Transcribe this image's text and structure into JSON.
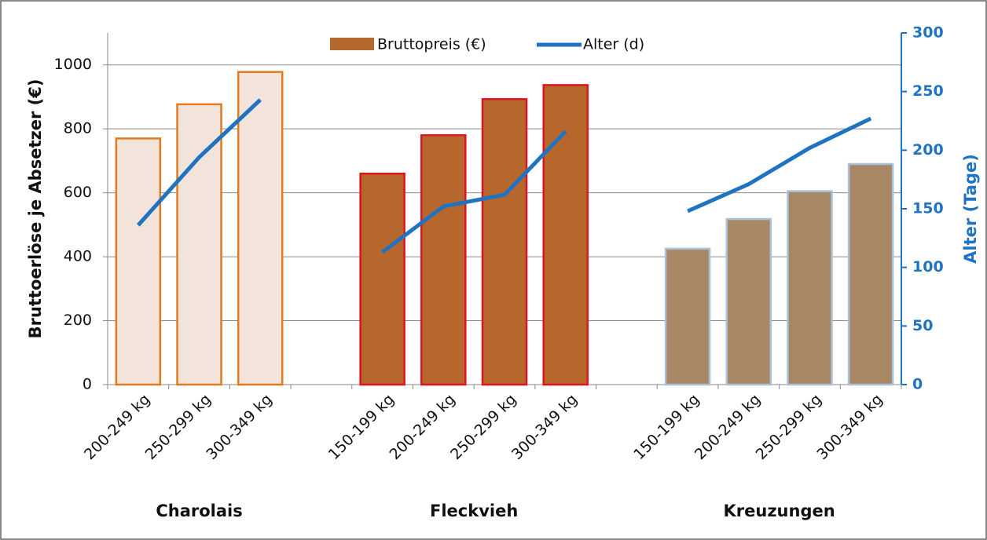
{
  "chart_data": {
    "type": "bar-line",
    "categories": [
      "200-249 kg",
      "250-299 kg",
      "300-349 kg",
      null,
      "150-199 kg",
      "200-249 kg",
      "250-299 kg",
      "300-349 kg",
      null,
      "150-199 kg",
      "200-249 kg",
      "250-299 kg",
      "300-349 kg"
    ],
    "groups": [
      "Charolais",
      "Fleckvieh",
      "Kreuzungen"
    ],
    "series": [
      {
        "name": "Bruttopreis (€)",
        "color": "#b5692f",
        "colors": [
          "#f2e4db",
          "#f2e4db",
          "#f2e4db",
          null,
          "#b8672c",
          "#b8672c",
          "#b8672c",
          "#b8672c",
          null,
          "#a88765",
          "#a88765",
          "#a88765",
          "#a88765"
        ],
        "edgecolors": [
          "#e07b20",
          "#e07b20",
          "#e07b20",
          null,
          "#e0141e",
          "#e0141e",
          "#e0141e",
          "#e0141e",
          null,
          "#a8c0dc",
          "#a8c0dc",
          "#a8c0dc",
          "#a8c0dc"
        ],
        "values": [
          770,
          877,
          978,
          null,
          660,
          780,
          893,
          937,
          null,
          425,
          518,
          605,
          690
        ]
      },
      {
        "name": "Alter (d)",
        "color": "#1f73c0",
        "axis": "y2",
        "values": [
          136,
          194,
          243,
          null,
          113,
          152,
          162,
          216,
          null,
          148,
          171,
          202,
          227
        ]
      }
    ],
    "ylabel": "Bruttoerlöse je Absetzer (€)",
    "y2label": "Alter (Tage)",
    "ylim": [
      0,
      1100
    ],
    "yticks": [
      0,
      200,
      400,
      600,
      800,
      1000
    ],
    "y2lim": [
      0,
      300
    ],
    "y2ticks": [
      0,
      50,
      100,
      150,
      200,
      250,
      300
    ],
    "grid": true,
    "legend": "top"
  }
}
